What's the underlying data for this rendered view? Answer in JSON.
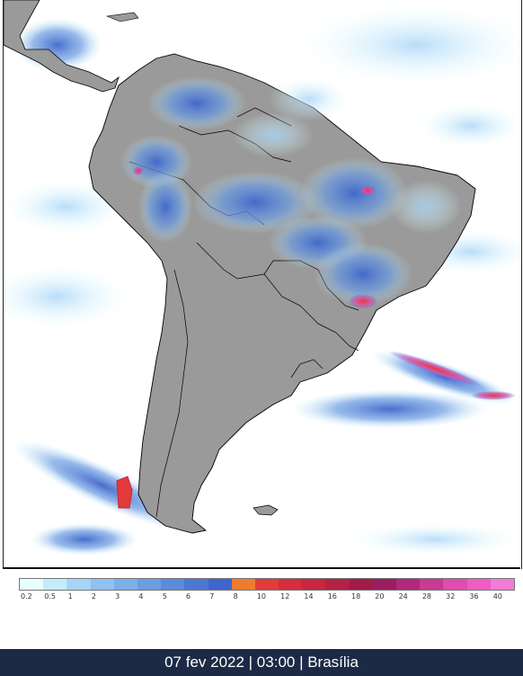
{
  "map": {
    "land_color": "#9a9a9a",
    "ocean_color": "#ffffff",
    "border_color": "#000000",
    "layer": "precipitation"
  },
  "legend": {
    "ticks": [
      "0.2",
      "0.5",
      "1",
      "2",
      "3",
      "4",
      "5",
      "6",
      "7",
      "8",
      "10",
      "12",
      "14",
      "16",
      "18",
      "20",
      "24",
      "28",
      "32",
      "36",
      "40"
    ],
    "colors": [
      "#e6ffff",
      "#c4ecfa",
      "#a6d4f7",
      "#8fc1f2",
      "#7dafe9",
      "#6c9de2",
      "#5b8bdb",
      "#4c78d3",
      "#3f66cc",
      "#f07a30",
      "#e33a3a",
      "#d82d3e",
      "#c8273f",
      "#b22245",
      "#a11c4a",
      "#9b1d62",
      "#b0297b",
      "#c93a93",
      "#df4dae",
      "#ef5cc4",
      "#f27cd8"
    ]
  },
  "footer": {
    "timestamp": "07 fev 2022 | 03:00 | Brasília"
  }
}
